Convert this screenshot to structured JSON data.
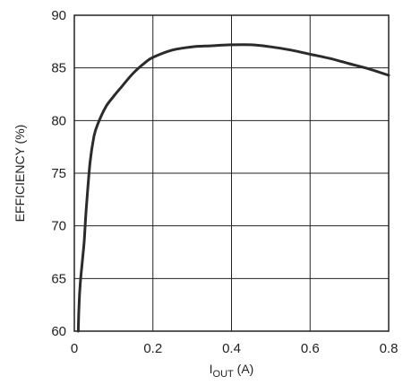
{
  "chart_data": {
    "type": "line",
    "title": "",
    "xlabel": {
      "main": "I",
      "sub": "OUT",
      "suffix": " (A)"
    },
    "ylabel": "EFFICIENCY (%)",
    "xlim": [
      0,
      0.8
    ],
    "ylim": [
      60,
      90
    ],
    "x_ticks": [
      "0",
      "0.2",
      "0.4",
      "0.6",
      "0.8"
    ],
    "y_ticks": [
      "60",
      "65",
      "70",
      "75",
      "80",
      "85",
      "90"
    ],
    "grid": true,
    "series": [
      {
        "x": [
          0.01,
          0.012,
          0.015,
          0.02,
          0.025,
          0.03,
          0.04,
          0.05,
          0.06,
          0.08,
          0.1,
          0.12,
          0.15,
          0.18,
          0.2,
          0.25,
          0.3,
          0.35,
          0.4,
          0.45,
          0.5,
          0.55,
          0.6,
          0.65,
          0.7,
          0.75,
          0.8
        ],
        "y": [
          60,
          62.5,
          64.5,
          66.5,
          68.5,
          71.5,
          76,
          78.5,
          79.7,
          81.3,
          82.3,
          83.2,
          84.5,
          85.5,
          86,
          86.7,
          87,
          87.1,
          87.2,
          87.2,
          87.0,
          86.7,
          86.3,
          85.9,
          85.4,
          84.9,
          84.3
        ],
        "color": "#2b2b2b"
      }
    ]
  }
}
